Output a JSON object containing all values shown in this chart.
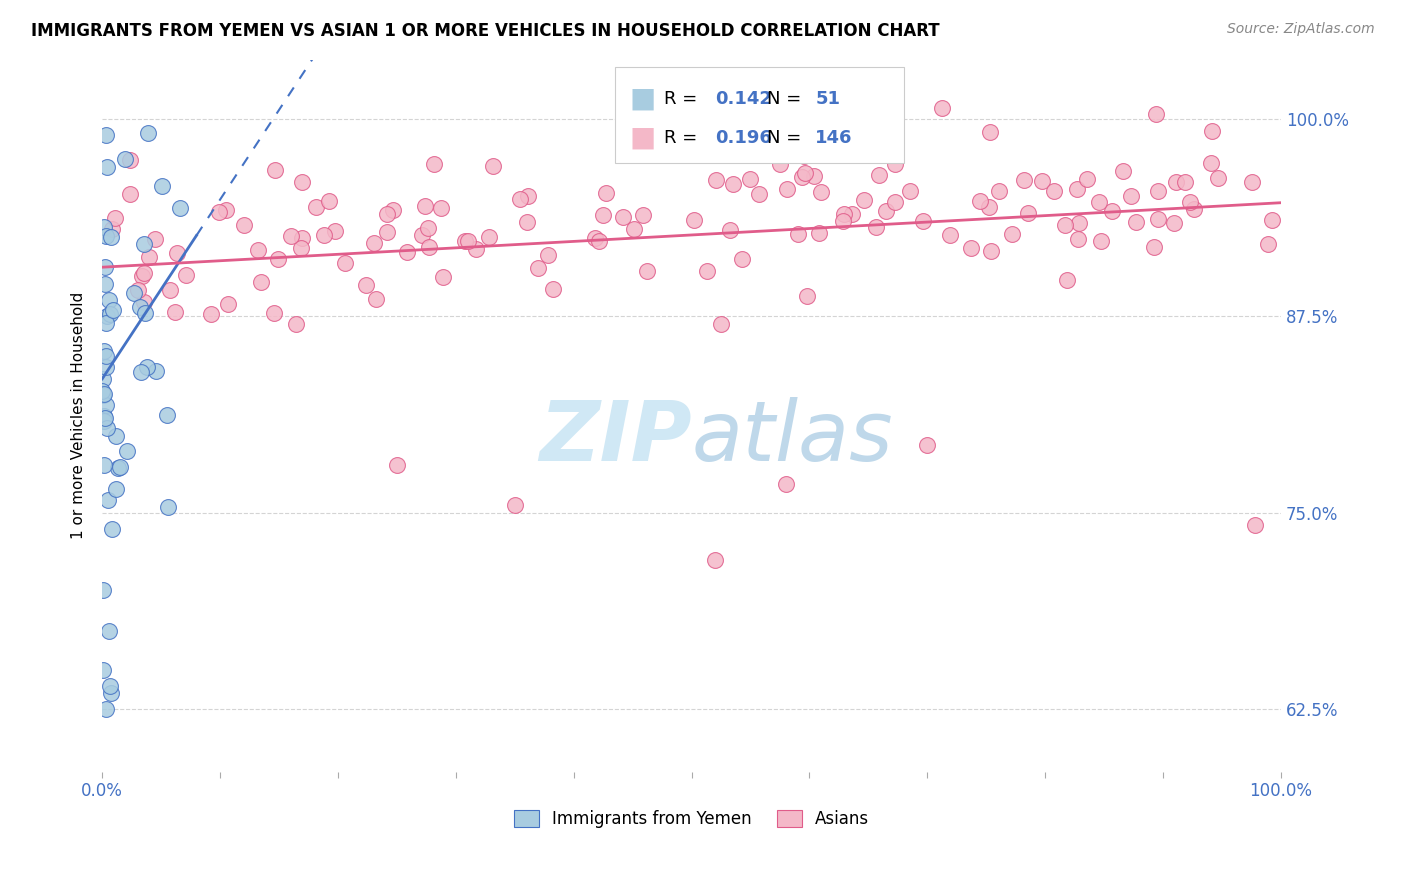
{
  "title": "IMMIGRANTS FROM YEMEN VS ASIAN 1 OR MORE VEHICLES IN HOUSEHOLD CORRELATION CHART",
  "source": "Source: ZipAtlas.com",
  "ylabel": "1 or more Vehicles in Household",
  "xlim": [
    0.0,
    1.0
  ],
  "ylim": [
    0.585,
    1.038
  ],
  "yticks": [
    0.625,
    0.75,
    0.875,
    1.0
  ],
  "ytick_labels": [
    "62.5%",
    "75.0%",
    "87.5%",
    "100.0%"
  ],
  "legend_label1": "Immigrants from Yemen",
  "legend_label2": "Asians",
  "r1": "0.142",
  "n1": "51",
  "r2": "0.196",
  "n2": "146",
  "color_blue": "#a8cce0",
  "color_pink": "#f4b8c8",
  "color_blue_dark": "#4472c4",
  "color_pink_dark": "#e05c8a",
  "color_text_blue": "#4472c4",
  "watermark_color": "#d0e8f5",
  "grid_color": "#d0d0d0"
}
